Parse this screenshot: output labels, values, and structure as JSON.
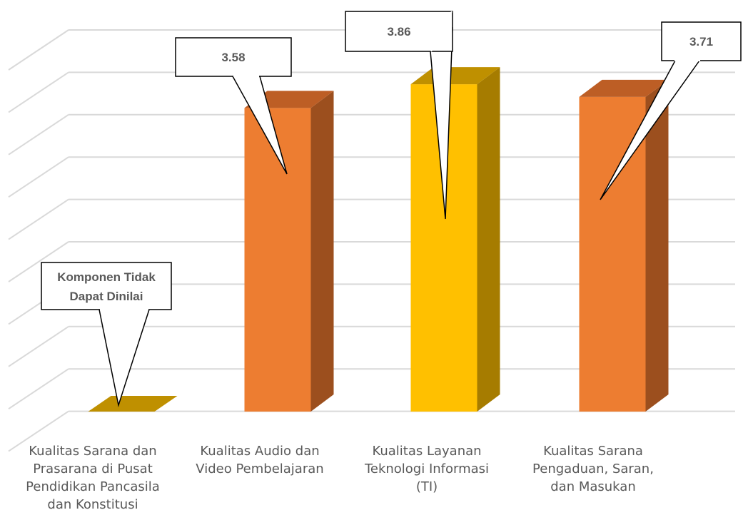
{
  "chart_data": {
    "type": "bar",
    "title": "",
    "xlabel": "",
    "ylabel": "",
    "ylim": [
      0,
      4.5
    ],
    "grid": true,
    "legend": "none",
    "categories": [
      "Kualitas Sarana dan Prasarana di Pusat Pendidikan Pancasila dan Konstitusi",
      "Kualitas Audio dan Video Pembelajaran",
      "Kualitas Layanan Teknologi Informasi (TI)",
      "Kualitas Sarana Pengaduan, Saran, dan Masukan"
    ],
    "category_lines": [
      "Kualitas Sarana dan\nPrasarana di Pusat\nPendidikan Pancasila\ndan Konstitusi",
      "Kualitas Audio dan\nVideo Pembelajaran",
      "Kualitas Layanan\nTeknologi Informasi\n(TI)",
      "Kualitas Sarana\nPengaduan, Saran,\ndan Masukan"
    ],
    "values": [
      0,
      3.58,
      3.86,
      3.71
    ],
    "callouts": [
      "Komponen Tidak\nDapat Dinilai",
      "3.58",
      "3.86",
      "3.71"
    ],
    "colors": {
      "bar_orange": "#ED7D31",
      "bar_orange_side": "#9C4F1E",
      "bar_orange_top": "#BD5E25",
      "bar_gold": "#FFC000",
      "bar_gold_side": "#A67C00",
      "bar_gold_top": "#BF9000",
      "floor_gold": "#BF9000",
      "gridline": "#D9D9D9",
      "label_text": "#595959"
    },
    "bar_colors": [
      "gold",
      "orange",
      "gold",
      "orange"
    ]
  }
}
